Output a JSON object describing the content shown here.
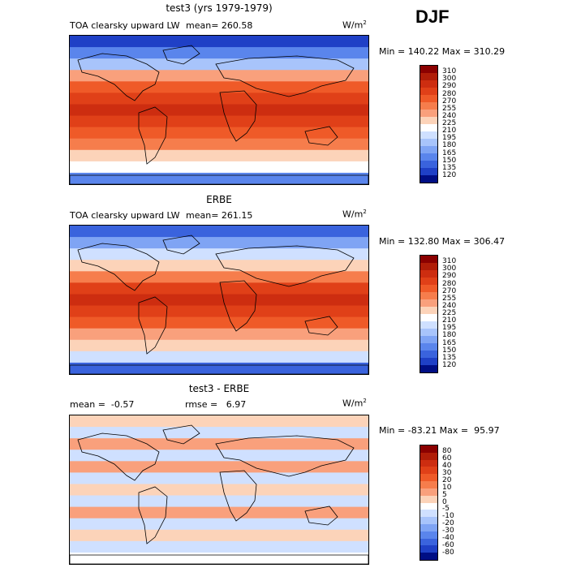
{
  "season": "DJF",
  "unit_label": "W/m",
  "unit_sup": "2",
  "panels": [
    {
      "title": "test3 (yrs 1979-1979)",
      "variable": "TOA clearsky upward LW",
      "mean_text": "mean= 260.58",
      "minmax_text": "Min = 140.22 Max = 310.29",
      "levels": [
        "310",
        "300",
        "290",
        "280",
        "270",
        "255",
        "240",
        "225",
        "210",
        "195",
        "180",
        "165",
        "150",
        "135",
        "120"
      ],
      "colors": [
        "#8b0000",
        "#b01d08",
        "#cd2d10",
        "#e04018",
        "#ef5a28",
        "#f67d4c",
        "#f9a07c",
        "#fcd3b9",
        "#ffffff",
        "#cfe0ff",
        "#a8c4fb",
        "#7fa4f4",
        "#5a85ec",
        "#3a63dd",
        "#1f40c6",
        "#000e84"
      ]
    },
    {
      "title": "ERBE",
      "variable": "TOA clearsky upward LW",
      "mean_text": "mean= 261.15",
      "minmax_text": "Min = 132.80 Max = 306.47",
      "levels": [
        "310",
        "300",
        "290",
        "280",
        "270",
        "255",
        "240",
        "225",
        "210",
        "195",
        "180",
        "165",
        "150",
        "135",
        "120"
      ],
      "colors": [
        "#8b0000",
        "#b01d08",
        "#cd2d10",
        "#e04018",
        "#ef5a28",
        "#f67d4c",
        "#f9a07c",
        "#fcd3b9",
        "#ffffff",
        "#cfe0ff",
        "#a8c4fb",
        "#7fa4f4",
        "#5a85ec",
        "#3a63dd",
        "#1f40c6",
        "#000e84"
      ]
    },
    {
      "title": "test3 - ERBE",
      "mean_text": "mean =  -0.57",
      "rmse_text": "rmse =   6.97",
      "minmax_text": "Min = -83.21 Max =  95.97",
      "levels": [
        "80",
        "60",
        "40",
        "30",
        "20",
        "10",
        "5",
        "0",
        "-5",
        "-10",
        "-20",
        "-30",
        "-40",
        "-60",
        "-80"
      ],
      "colors": [
        "#8b0000",
        "#b01d08",
        "#cd2d10",
        "#e04018",
        "#ef5a28",
        "#f67d4c",
        "#f9a07c",
        "#fcd3b9",
        "#ffffff",
        "#cfe0ff",
        "#a8c4fb",
        "#7fa4f4",
        "#5a85ec",
        "#3a63dd",
        "#1f40c6",
        "#000e84"
      ]
    }
  ],
  "map_bands": [
    [
      "#1f40c6",
      "#5a85ec",
      "#a8c4fb",
      "#f9a07c",
      "#ef5a28",
      "#e04018",
      "#cd2d10",
      "#e04018",
      "#ef5a28",
      "#f67d4c",
      "#fcd3b9",
      "#ffffff",
      "#5a85ec"
    ],
    [
      "#3a63dd",
      "#7fa4f4",
      "#cfe0ff",
      "#fcd3b9",
      "#f67d4c",
      "#e04018",
      "#cd2d10",
      "#e04018",
      "#ef5a28",
      "#f9a07c",
      "#fcd3b9",
      "#cfe0ff",
      "#3a63dd"
    ],
    [
      "#fcd3b9",
      "#cfe0ff",
      "#f9a07c",
      "#cfe0ff",
      "#f9a07c",
      "#cfe0ff",
      "#fcd3b9",
      "#cfe0ff",
      "#f9a07c",
      "#cfe0ff",
      "#fcd3b9",
      "#cfe0ff",
      "#ffffff"
    ]
  ]
}
